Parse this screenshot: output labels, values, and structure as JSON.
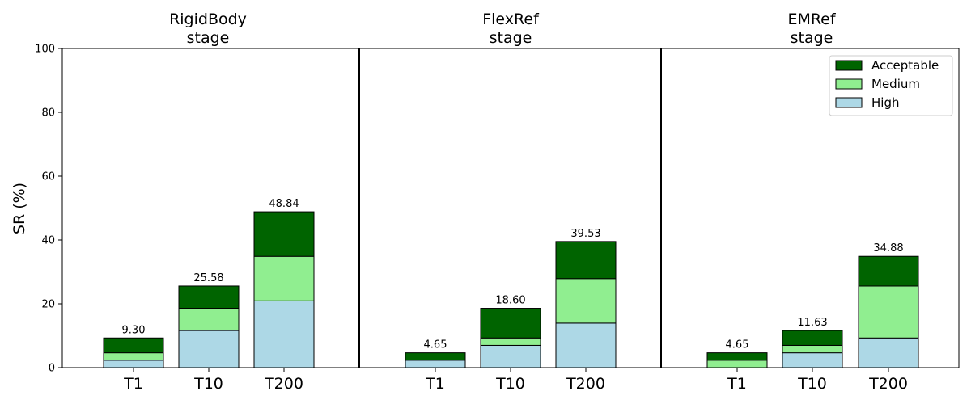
{
  "chart_data": {
    "type": "bar",
    "stacked": true,
    "ylabel": "SR (%)",
    "ylim": [
      0,
      100
    ],
    "yticks": [
      0,
      20,
      40,
      60,
      80,
      100
    ],
    "categories": [
      "T1",
      "T10",
      "T200"
    ],
    "series_names": [
      "Acceptable",
      "Medium",
      "High"
    ],
    "colors": {
      "High": "#add8e6",
      "Medium": "#90ee90",
      "Acceptable": "#006400"
    },
    "legend_position": "top-right",
    "grid": false,
    "panels": [
      {
        "title_line1": "RigidBody",
        "title_line2": "stage",
        "totals": [
          "9.30",
          "25.58",
          "48.84"
        ],
        "high": [
          2.33,
          11.63,
          20.93
        ],
        "medium": [
          4.65,
          18.6,
          34.88
        ],
        "acceptable": [
          9.3,
          25.58,
          48.84
        ]
      },
      {
        "title_line1": "FlexRef",
        "title_line2": "stage",
        "totals": [
          "4.65",
          "18.60",
          "39.53"
        ],
        "high": [
          2.33,
          6.98,
          13.95
        ],
        "medium": [
          2.33,
          9.3,
          27.91
        ],
        "acceptable": [
          4.65,
          18.6,
          39.53
        ]
      },
      {
        "title_line1": "EMRef",
        "title_line2": "stage",
        "totals": [
          "4.65",
          "11.63",
          "34.88"
        ],
        "high": [
          0,
          4.65,
          9.3
        ],
        "medium": [
          2.33,
          6.98,
          25.58
        ],
        "acceptable": [
          4.65,
          11.63,
          34.88
        ]
      }
    ]
  }
}
